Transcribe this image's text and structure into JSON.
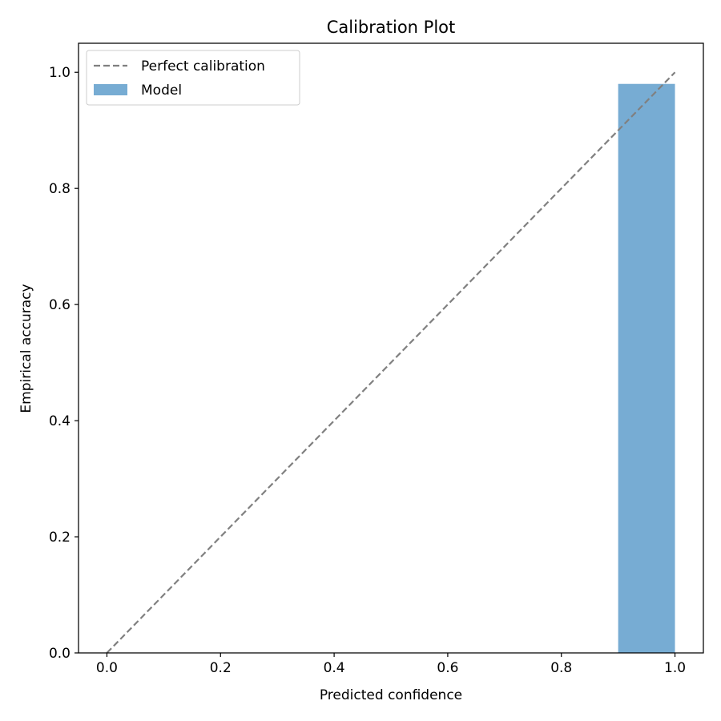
{
  "chart_data": {
    "type": "bar",
    "title": "Calibration Plot",
    "xlabel": "Predicted confidence",
    "ylabel": "Empirical accuracy",
    "xlim": [
      -0.05,
      1.05
    ],
    "ylim": [
      0,
      1.05
    ],
    "xticks": [
      0.0,
      0.2,
      0.4,
      0.6,
      0.8,
      1.0
    ],
    "yticks": [
      0.0,
      0.2,
      0.4,
      0.6,
      0.8,
      1.0
    ],
    "xtick_labels": [
      "0.0",
      "0.2",
      "0.4",
      "0.6",
      "0.8",
      "1.0"
    ],
    "ytick_labels": [
      "0.0",
      "0.2",
      "0.4",
      "0.6",
      "0.8",
      "1.0"
    ],
    "grid": false,
    "legend_position": "top-left",
    "series": [
      {
        "name": "Perfect calibration",
        "kind": "line",
        "style": "dashed",
        "color": "#808080",
        "x": [
          0.0,
          1.0
        ],
        "y": [
          0.0,
          1.0
        ]
      },
      {
        "name": "Model",
        "kind": "bar",
        "color": "#77acd3",
        "bars": [
          {
            "x_start": 0.9,
            "x_end": 1.0,
            "value": 0.98
          }
        ]
      }
    ]
  }
}
